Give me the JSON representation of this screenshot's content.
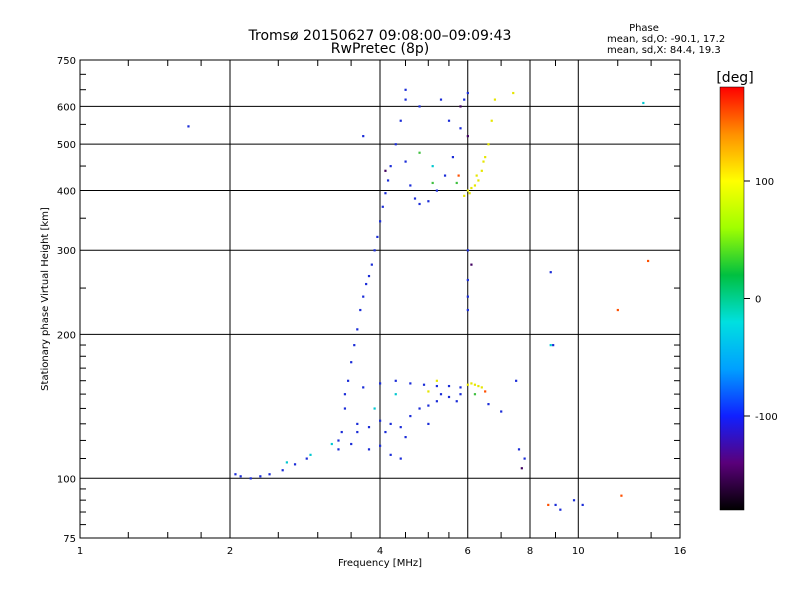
{
  "chart_data": {
    "type": "scatter",
    "title": "Tromsø 20150627 09:08:00–09:09:43",
    "subtitle": "RwPretec (8p)",
    "xlabel": "Frequency [MHz]",
    "ylabel": "Stationary phase Virtual Height [km]",
    "x_scale": "log",
    "y_scale": "log",
    "xlim": [
      1,
      16
    ],
    "ylim": [
      75,
      750
    ],
    "x_ticks": [
      1,
      2,
      4,
      6,
      8,
      10,
      16
    ],
    "y_ticks": [
      75,
      100,
      200,
      300,
      400,
      500,
      600,
      750
    ],
    "grid": true,
    "stats": {
      "heading": "Phase",
      "line_o": "mean, sd,O: -90.1, 17.2",
      "line_x": "mean, sd,X:  84.4, 19.3"
    },
    "colorbar": {
      "label": "[deg]",
      "range": [
        -180,
        180
      ],
      "ticks": [
        100,
        0,
        -100
      ],
      "colors": [
        "#000000",
        "#5a007a",
        "#1020ff",
        "#00a0ff",
        "#00e0e0",
        "#00c040",
        "#a0ff00",
        "#ffff00",
        "#ff9000",
        "#ff0000"
      ]
    },
    "series": [
      {
        "phase_deg": -90,
        "color": "#1a2cd8",
        "points": [
          [
            2.05,
            102
          ],
          [
            2.1,
            101
          ],
          [
            2.2,
            100
          ],
          [
            2.3,
            101
          ],
          [
            2.4,
            102
          ],
          [
            2.55,
            104
          ],
          [
            2.7,
            107
          ],
          [
            2.85,
            110
          ],
          [
            3.3,
            120
          ],
          [
            3.35,
            125
          ],
          [
            3.4,
            140
          ],
          [
            3.45,
            160
          ],
          [
            3.5,
            175
          ],
          [
            3.55,
            190
          ],
          [
            3.6,
            205
          ],
          [
            3.65,
            225
          ],
          [
            3.7,
            240
          ],
          [
            3.75,
            255
          ],
          [
            3.8,
            265
          ],
          [
            3.85,
            280
          ],
          [
            3.9,
            300
          ],
          [
            3.95,
            320
          ],
          [
            4.0,
            345
          ],
          [
            4.05,
            370
          ],
          [
            4.1,
            395
          ],
          [
            4.15,
            420
          ],
          [
            4.2,
            450
          ],
          [
            4.3,
            500
          ],
          [
            4.4,
            560
          ],
          [
            4.5,
            620
          ],
          [
            4.5,
            460
          ],
          [
            4.6,
            410
          ],
          [
            4.7,
            385
          ],
          [
            4.8,
            375
          ],
          [
            5.0,
            380
          ],
          [
            5.2,
            400
          ],
          [
            5.4,
            430
          ],
          [
            5.6,
            470
          ],
          [
            5.8,
            540
          ],
          [
            5.9,
            620
          ],
          [
            3.6,
            125
          ],
          [
            3.8,
            128
          ],
          [
            4.0,
            132
          ],
          [
            4.2,
            130
          ],
          [
            4.4,
            128
          ],
          [
            4.6,
            135
          ],
          [
            4.8,
            140
          ],
          [
            5.0,
            142
          ],
          [
            5.2,
            145
          ],
          [
            5.5,
            148
          ],
          [
            5.8,
            150
          ],
          [
            3.4,
            150
          ],
          [
            3.7,
            155
          ],
          [
            4.0,
            158
          ],
          [
            4.3,
            160
          ],
          [
            4.6,
            158
          ],
          [
            4.9,
            157
          ],
          [
            5.2,
            156
          ],
          [
            5.5,
            156
          ],
          [
            5.8,
            155
          ],
          [
            3.5,
            118
          ],
          [
            3.8,
            115
          ],
          [
            4.0,
            117
          ],
          [
            4.2,
            112
          ],
          [
            4.4,
            110
          ],
          [
            3.3,
            115
          ],
          [
            3.6,
            130
          ],
          [
            4.1,
            125
          ],
          [
            4.5,
            122
          ],
          [
            5.0,
            130
          ],
          [
            5.3,
            150
          ],
          [
            5.7,
            145
          ],
          [
            6.0,
            300
          ],
          [
            6.0,
            260
          ],
          [
            6.0,
            240
          ],
          [
            6.0,
            225
          ],
          [
            6.6,
            143
          ],
          [
            7.0,
            138
          ],
          [
            7.5,
            160
          ],
          [
            7.6,
            115
          ],
          [
            7.8,
            110
          ],
          [
            1.65,
            545
          ],
          [
            3.7,
            520
          ],
          [
            8.8,
            270
          ],
          [
            8.9,
            190
          ],
          [
            9.0,
            88
          ],
          [
            9.2,
            86
          ],
          [
            9.8,
            90
          ],
          [
            10.2,
            88
          ],
          [
            4.5,
            650
          ],
          [
            5.3,
            620
          ],
          [
            6.0,
            640
          ],
          [
            4.8,
            600
          ],
          [
            5.5,
            560
          ]
        ]
      },
      {
        "phase_deg": 100,
        "color": "#e6e600",
        "points": [
          [
            6.0,
            400
          ],
          [
            6.1,
            405
          ],
          [
            6.2,
            410
          ],
          [
            6.3,
            420
          ],
          [
            6.4,
            440
          ],
          [
            6.5,
            470
          ],
          [
            6.6,
            500
          ],
          [
            6.7,
            560
          ],
          [
            6.8,
            620
          ],
          [
            5.9,
            390
          ],
          [
            6.05,
            395
          ],
          [
            6.25,
            430
          ],
          [
            6.45,
            460
          ],
          [
            6.0,
            157
          ],
          [
            6.1,
            158
          ],
          [
            6.2,
            157
          ],
          [
            6.3,
            156
          ],
          [
            6.4,
            155
          ],
          [
            7.4,
            640
          ],
          [
            5.0,
            152
          ],
          [
            5.2,
            160
          ]
        ]
      },
      {
        "phase_deg": -10,
        "color": "#00c8d0",
        "points": [
          [
            2.6,
            108
          ],
          [
            2.9,
            112
          ],
          [
            3.2,
            118
          ],
          [
            3.9,
            140
          ],
          [
            4.3,
            150
          ],
          [
            5.1,
            450
          ],
          [
            8.8,
            190
          ],
          [
            13.5,
            610
          ]
        ]
      },
      {
        "phase_deg": 40,
        "color": "#40c040",
        "points": [
          [
            5.7,
            415
          ],
          [
            6.2,
            150
          ],
          [
            4.8,
            480
          ],
          [
            5.1,
            415
          ]
        ]
      },
      {
        "phase_deg": 150,
        "color": "#ff5000",
        "points": [
          [
            5.75,
            430
          ],
          [
            6.5,
            152
          ],
          [
            12.2,
            92
          ],
          [
            12.0,
            225
          ],
          [
            13.8,
            285
          ],
          [
            8.7,
            88
          ]
        ]
      },
      {
        "phase_deg": -150,
        "color": "#400060",
        "points": [
          [
            5.8,
            600
          ],
          [
            6.0,
            520
          ],
          [
            4.1,
            440
          ],
          [
            6.1,
            280
          ],
          [
            7.7,
            105
          ]
        ]
      }
    ]
  }
}
